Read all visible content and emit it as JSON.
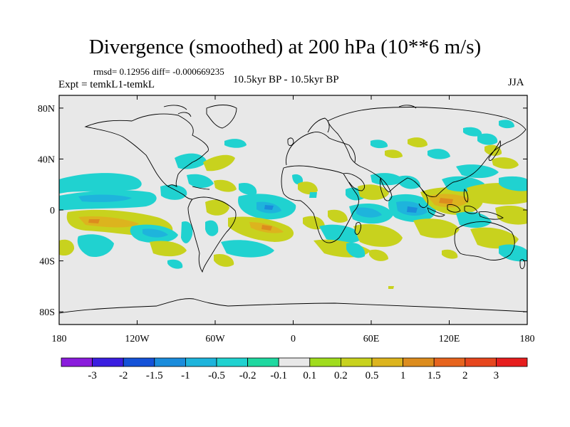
{
  "title": "Divergence (smoothed) at 200 hPa (10**6 m/s)",
  "stats": "rmsd= 0.12956 diff= -0.000669235",
  "experiment": "Expt = temkL1-temkL",
  "period": "10.5kyr BP - 10.5kyr BP",
  "season": "JJA",
  "map": {
    "projection": "cylindrical equidistant",
    "lon_range": [
      -180,
      180
    ],
    "lat_range": [
      -90,
      90
    ],
    "lon_ticks": [
      {
        "value": -180,
        "label": "180"
      },
      {
        "value": -120,
        "label": "120W"
      },
      {
        "value": -60,
        "label": "60W"
      },
      {
        "value": 0,
        "label": "0"
      },
      {
        "value": 60,
        "label": "60E"
      },
      {
        "value": 120,
        "label": "120E"
      },
      {
        "value": 180,
        "label": "180"
      }
    ],
    "lat_ticks": [
      {
        "value": 80,
        "label": "80N"
      },
      {
        "value": 40,
        "label": "40N"
      },
      {
        "value": 0,
        "label": "0"
      },
      {
        "value": -40,
        "label": "40S"
      },
      {
        "value": -80,
        "label": "80S"
      }
    ],
    "background_color": "#e8e8e8"
  },
  "colorbar": {
    "labels": [
      "-3",
      "-2",
      "-1.5",
      "-1",
      "-0.5",
      "-0.2",
      "-0.1",
      "0.1",
      "0.2",
      "0.5",
      "1",
      "1.5",
      "2",
      "3"
    ],
    "colors": [
      "#8a1cdc",
      "#3a1ee0",
      "#1452d8",
      "#1a8cdc",
      "#1eb4dc",
      "#20d2d0",
      "#1fd8a0",
      "#e8e8e8",
      "#a0dc1e",
      "#c8d21e",
      "#dcb41e",
      "#dc8c1e",
      "#e6641e",
      "#e6461e",
      "#e61e1e"
    ]
  }
}
